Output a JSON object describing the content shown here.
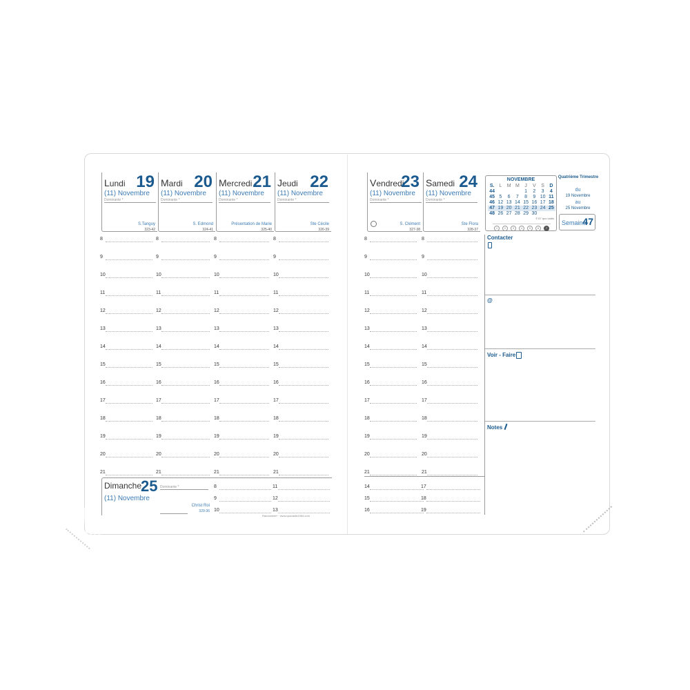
{
  "left_days": [
    {
      "name": "Lundi",
      "num": "19",
      "month": "(11) Novembre",
      "dominante": "Dominante *",
      "saint": "S.Tanguy",
      "code": "323-42"
    },
    {
      "name": "Mardi",
      "num": "20",
      "month": "(11) Novembre",
      "dominante": "Dominante *",
      "saint": "S. Edmond",
      "code": "324-41"
    },
    {
      "name": "Mercredi",
      "num": "21",
      "month": "(11) Novembre",
      "dominante": "Dominante *",
      "saint": "Présentation de Marie",
      "code": "325-40"
    },
    {
      "name": "Jeudi",
      "num": "22",
      "month": "(11) Novembre",
      "dominante": "Dominante *",
      "saint": "Ste Cécile",
      "code": "326-39"
    }
  ],
  "right_days": [
    {
      "name": "Vendredi",
      "num": "23",
      "month": "(11) Novembre",
      "dominante": "Dominante *",
      "saint": "S. Clément",
      "code": "327-38"
    },
    {
      "name": "Samedi",
      "num": "24",
      "month": "(11) Novembre",
      "dominante": "Dominante *",
      "saint": "Ste Flora",
      "code": "328-37"
    }
  ],
  "hours": [
    "8",
    "9",
    "10",
    "11",
    "12",
    "13",
    "14",
    "15",
    "16",
    "17",
    "18",
    "19",
    "20",
    "21"
  ],
  "sunday": {
    "name": "Dimanche",
    "num": "25",
    "month": "(11) Novembre",
    "dominante": "Dominante *",
    "saint": "Christ Roi",
    "code": "329-36",
    "hours_a": [
      "8",
      "9",
      "10"
    ],
    "hours_b": [
      "11",
      "12",
      "13"
    ]
  },
  "saturday_extra": {
    "hours_a": [
      "14",
      "15",
      "16"
    ],
    "hours_b": [
      "17",
      "18",
      "19"
    ]
  },
  "footer": "Randonnée* · www.quovadis1954.com",
  "mini_calendar": {
    "title": "NOVEMBRE",
    "headers": [
      "S.",
      "L",
      "M",
      "M",
      "J",
      "V",
      "S",
      "D"
    ],
    "rows": [
      [
        "44",
        "",
        "",
        "",
        "1",
        "2",
        "3",
        "4"
      ],
      [
        "45",
        "5",
        "6",
        "7",
        "8",
        "9",
        "10",
        "11"
      ],
      [
        "46",
        "12",
        "13",
        "14",
        "15",
        "16",
        "17",
        "18"
      ],
      [
        "47",
        "19",
        "20",
        "21",
        "22",
        "23",
        "24",
        "25"
      ],
      [
        "48",
        "26",
        "27",
        "28",
        "29",
        "30",
        "",
        ""
      ]
    ],
    "highlight_week": "47",
    "copyright": "© 67 quo vadis",
    "weekdays": [
      "1",
      "2",
      "3",
      "4",
      "5",
      "6",
      "7"
    ]
  },
  "quarter": {
    "title": "Quatrième Trimestre",
    "du": "du",
    "from": "19 Novembre",
    "au": "au",
    "to": "25 Novembre",
    "week_label": "Semaine",
    "week_num": "47"
  },
  "panel": {
    "contacter": "Contacter",
    "at": "@",
    "voir_faire": "Voir - Faire",
    "notes": "Notes"
  },
  "colors": {
    "accent": "#1b5a8e",
    "light": "#3b7bb5"
  }
}
